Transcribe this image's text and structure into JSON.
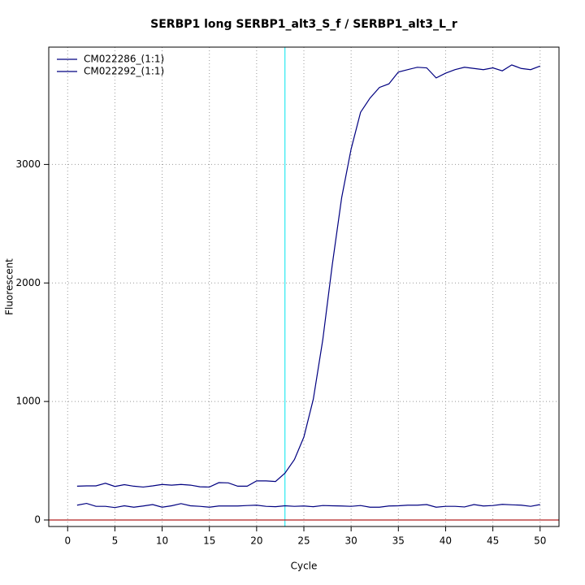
{
  "chart_data": {
    "type": "line",
    "title": "SERBP1 long SERBP1_alt3_S_f / SERBP1_alt3_L_r",
    "x_label": "Cycle",
    "y_label": "Fluorescent",
    "x": [
      1,
      2,
      3,
      4,
      5,
      6,
      7,
      8,
      9,
      10,
      11,
      12,
      13,
      14,
      15,
      16,
      17,
      18,
      19,
      20,
      21,
      22,
      23,
      24,
      25,
      26,
      27,
      28,
      29,
      30,
      31,
      32,
      33,
      34,
      35,
      36,
      37,
      38,
      39,
      40,
      41,
      42,
      43,
      44,
      45,
      46,
      47,
      48,
      49,
      50
    ],
    "series": [
      {
        "name": "CM022286_(1:1)",
        "color": "#000080",
        "values": [
          285,
          288,
          288,
          310,
          283,
          298,
          285,
          278,
          288,
          300,
          294,
          300,
          294,
          280,
          278,
          315,
          313,
          285,
          285,
          330,
          330,
          325,
          395,
          510,
          700,
          1020,
          1520,
          2150,
          2720,
          3130,
          3440,
          3560,
          3650,
          3680,
          3780,
          3800,
          3820,
          3815,
          3730,
          3770,
          3800,
          3820,
          3810,
          3800,
          3815,
          3790,
          3840,
          3810,
          3800,
          3830
        ]
      },
      {
        "name": "CM022292_(1:1)",
        "color": "#000080",
        "values": [
          125,
          140,
          115,
          115,
          105,
          120,
          108,
          118,
          130,
          108,
          120,
          138,
          120,
          115,
          108,
          118,
          118,
          118,
          122,
          125,
          115,
          112,
          120,
          115,
          118,
          112,
          122,
          120,
          118,
          115,
          122,
          108,
          108,
          118,
          120,
          125,
          125,
          130,
          108,
          115,
          115,
          110,
          130,
          118,
          122,
          132,
          128,
          125,
          115,
          130
        ]
      }
    ],
    "xlim": [
      -2,
      52
    ],
    "ylim": [
      -55,
      3990
    ],
    "xticks": [
      0,
      5,
      10,
      15,
      20,
      25,
      30,
      35,
      40,
      45,
      50
    ],
    "yticks": [
      0,
      1000,
      2000,
      3000
    ],
    "grid": true,
    "legend": "top-left",
    "threshold_x": {
      "value": 23,
      "color": "#00e5ee"
    },
    "threshold_y": {
      "value": 0,
      "color": "#b22222"
    }
  }
}
